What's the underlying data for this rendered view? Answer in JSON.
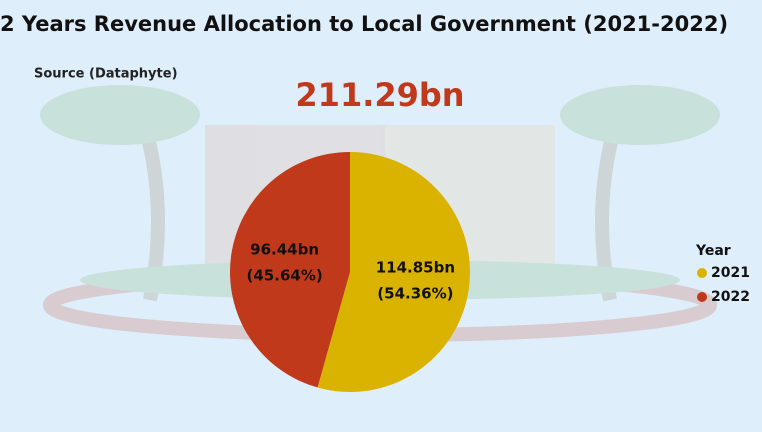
{
  "chart_data": {
    "type": "pie",
    "title": "2 Years Revenue Allocation to Local Government (2021-2022)",
    "subtitle": "Source (Dataphyte)",
    "annotation": "211.29bn",
    "categories": [
      "2021",
      "2022"
    ],
    "values": [
      114.85,
      96.44
    ],
    "value_labels": [
      "114.85bn",
      "96.44bn"
    ],
    "percent_labels": [
      "(54.36%)",
      "(45.64%)"
    ],
    "colors": [
      "#d9b300",
      "#c0391b"
    ],
    "legend_title": "Year",
    "legend_position": "right"
  }
}
